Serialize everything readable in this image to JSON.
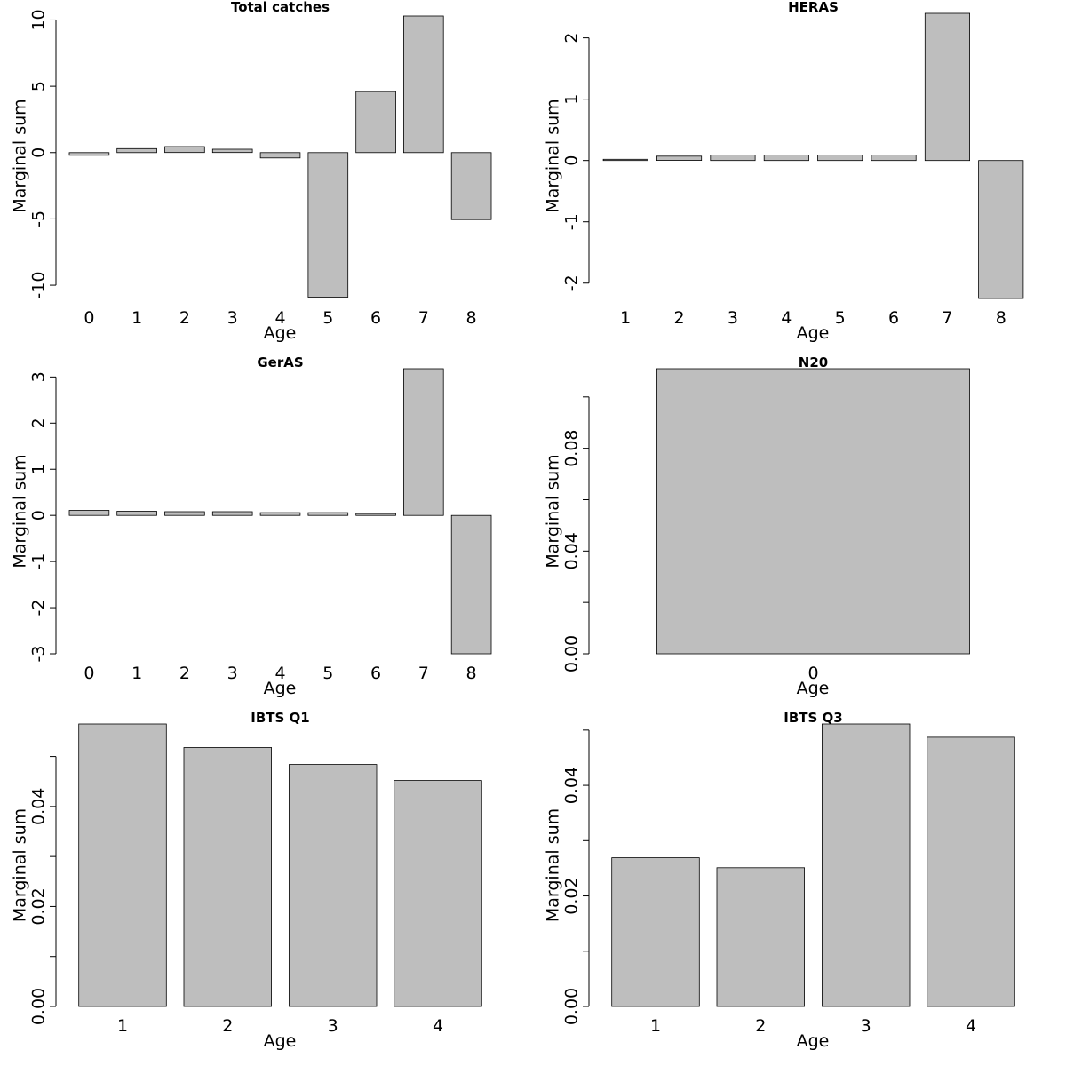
{
  "figure": {
    "bar_fill": "#bebebe",
    "bar_stroke": "#000000"
  },
  "chart_data": [
    {
      "type": "bar",
      "title": "Total catches",
      "xlabel": "Age",
      "ylabel": "Marginal sum",
      "categories": [
        "0",
        "1",
        "2",
        "3",
        "4",
        "5",
        "6",
        "7",
        "8"
      ],
      "values": [
        -0.2,
        0.3,
        0.45,
        0.25,
        -0.4,
        -10.9,
        4.6,
        10.3,
        -5.05
      ],
      "ylim": [
        -11,
        10.5
      ],
      "yticks": [
        -10,
        -5,
        0,
        5,
        10
      ],
      "ytick_labels": [
        "-10",
        "-5",
        "0",
        "5",
        "10"
      ]
    },
    {
      "type": "bar",
      "title": "HERAS",
      "xlabel": "Age",
      "ylabel": "Marginal sum",
      "categories": [
        "1",
        "2",
        "3",
        "4",
        "5",
        "6",
        "7",
        "8"
      ],
      "values": [
        0.02,
        0.07,
        0.09,
        0.09,
        0.09,
        0.09,
        2.4,
        -2.25
      ],
      "ylim": [
        -2.25,
        2.4
      ],
      "yticks": [
        -2,
        -1,
        0,
        1,
        2
      ],
      "ytick_labels": [
        "-2",
        "-1",
        "0",
        "1",
        "2"
      ]
    },
    {
      "type": "bar",
      "title": "GerAS",
      "xlabel": "Age",
      "ylabel": "Marginal sum",
      "categories": [
        "0",
        "1",
        "2",
        "3",
        "4",
        "5",
        "6",
        "7",
        "8"
      ],
      "values": [
        0.11,
        0.09,
        0.08,
        0.08,
        0.06,
        0.06,
        0.04,
        3.18,
        -3.0
      ],
      "ylim": [
        -3.0,
        3.18
      ],
      "yticks": [
        -3,
        -2,
        -1,
        0,
        1,
        2,
        3
      ],
      "ytick_labels": [
        "-3",
        "-2",
        "-1",
        "0",
        "1",
        "2",
        "3"
      ]
    },
    {
      "type": "bar",
      "title": "N20",
      "xlabel": "Age",
      "ylabel": "Marginal sum",
      "categories": [
        "0"
      ],
      "values": [
        0.111
      ],
      "ylim": [
        0,
        0.111
      ],
      "yticks": [
        0,
        0.02,
        0.04,
        0.06,
        0.08,
        0.1
      ],
      "ytick_labels": [
        "0.00",
        "",
        "0.04",
        "",
        "0.08",
        ""
      ]
    },
    {
      "type": "bar",
      "title": "IBTS Q1",
      "xlabel": "Age",
      "ylabel": "Marginal sum",
      "categories": [
        "1",
        "2",
        "3",
        "4"
      ],
      "values": [
        0.0565,
        0.0518,
        0.0484,
        0.0452
      ],
      "ylim": [
        0,
        0.0565
      ],
      "yticks": [
        0,
        0.01,
        0.02,
        0.03,
        0.04,
        0.05
      ],
      "ytick_labels": [
        "0.00",
        "",
        "0.02",
        "",
        "0.04",
        ""
      ]
    },
    {
      "type": "bar",
      "title": "IBTS Q3",
      "xlabel": "Age",
      "ylabel": "Marginal sum",
      "categories": [
        "1",
        "2",
        "3",
        "4"
      ],
      "values": [
        0.0269,
        0.0251,
        0.0511,
        0.0487
      ],
      "ylim": [
        0,
        0.0511
      ],
      "yticks": [
        0,
        0.01,
        0.02,
        0.03,
        0.04,
        0.05
      ],
      "ytick_labels": [
        "0.00",
        "",
        "0.02",
        "",
        "0.04",
        ""
      ]
    }
  ]
}
